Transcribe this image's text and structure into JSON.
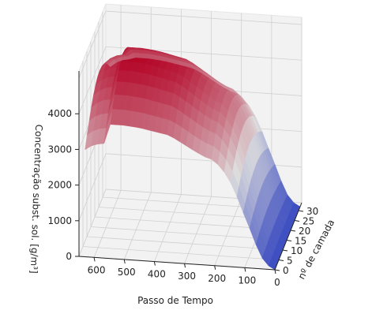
{
  "chart_data": {
    "type": "surface3d",
    "title": "",
    "xlabel": "Passo de Tempo",
    "ylabel": "nº de camada",
    "zlabel": "Concentração subst. sol. [g/m³]",
    "x_ticks": [
      600,
      500,
      400,
      300,
      200,
      100,
      0
    ],
    "y_ticks": [
      0,
      5,
      10,
      15,
      20,
      25,
      30
    ],
    "z_ticks": [
      0,
      1000,
      2000,
      3000,
      4000
    ],
    "xlim": [
      0,
      650
    ],
    "ylim": [
      0,
      34
    ],
    "zlim": [
      0,
      5200
    ],
    "colormap": "coolwarm",
    "grid": true,
    "surface_profile": {
      "x": [
        0,
        25,
        50,
        75,
        100,
        120,
        140,
        160,
        180,
        200,
        230,
        260,
        300,
        350,
        400,
        450,
        500,
        550,
        600,
        630
      ],
      "z_max": [
        0,
        150,
        500,
        1200,
        1850,
        2400,
        2900,
        3300,
        3550,
        3800,
        3900,
        4050,
        4300,
        4600,
        4700,
        4800,
        4850,
        4850,
        4750,
        4500
      ]
    }
  },
  "colors": {
    "surface_low": "#3b4cc0",
    "surface_mid": "#dddddd",
    "surface_high": "#b40426",
    "pane": "#f2f2f2",
    "grid": "#d0d0d0"
  }
}
